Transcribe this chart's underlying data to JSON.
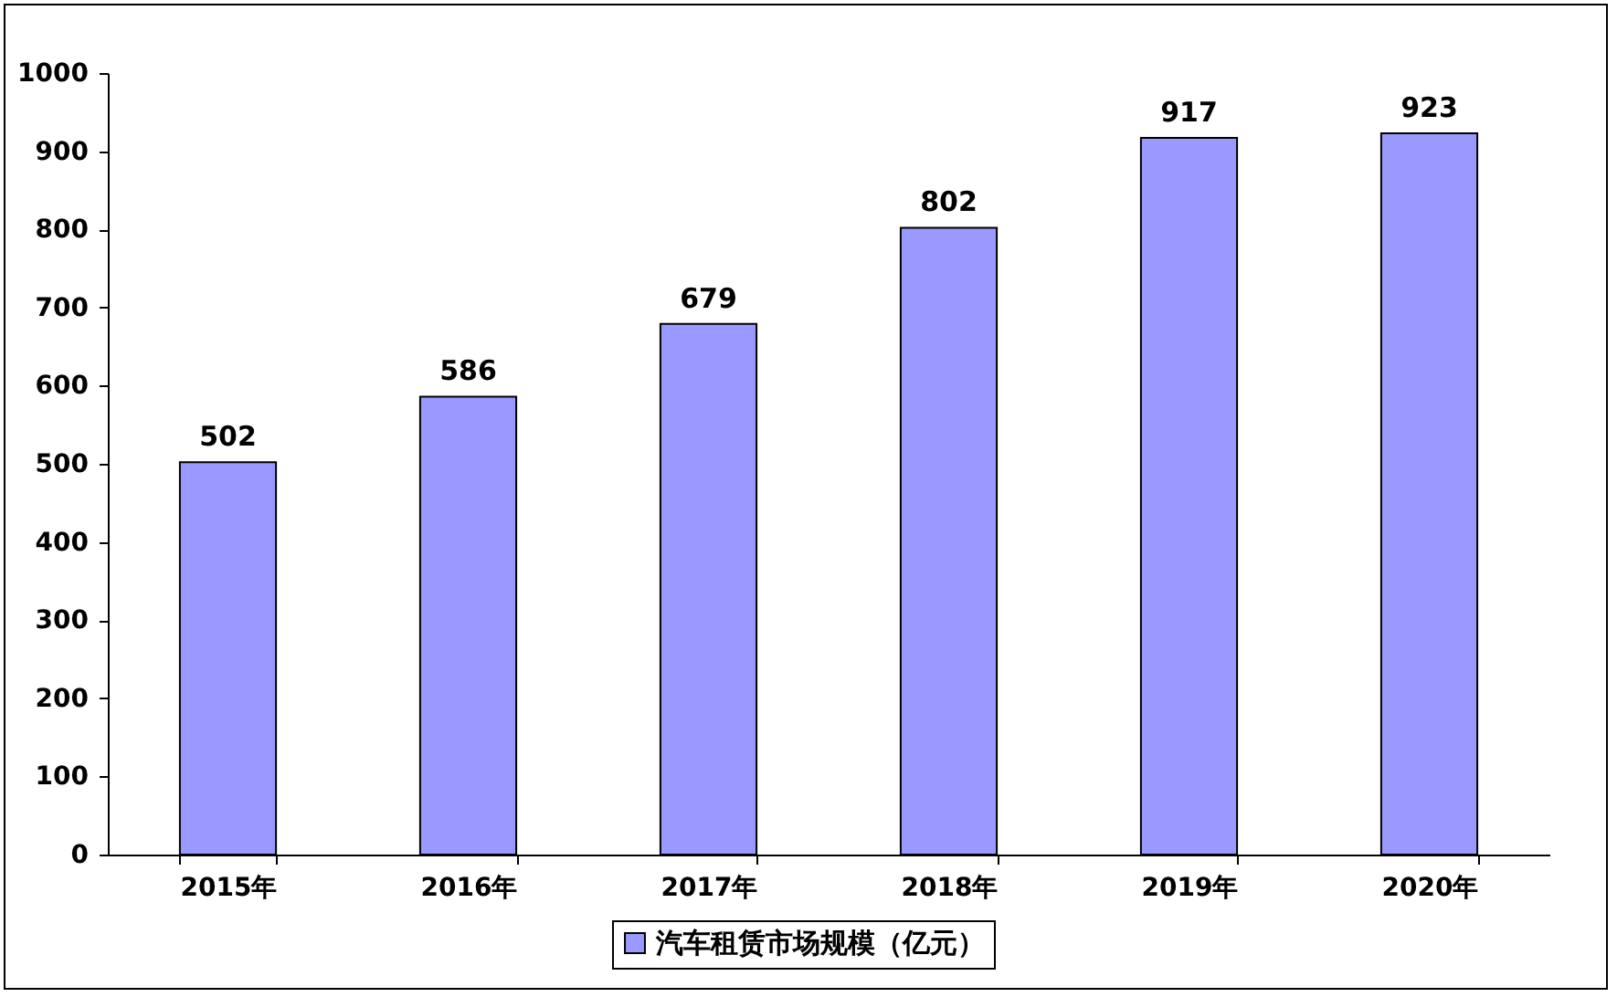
{
  "chart_data": {
    "type": "bar",
    "categories": [
      "2015年",
      "2016年",
      "2017年",
      "2018年",
      "2019年",
      "2020年"
    ],
    "series": [
      {
        "name": "汽车租赁市场规模（亿元）",
        "color": "#9999ff",
        "values": [
          502,
          586,
          679,
          802,
          917,
          923
        ]
      }
    ],
    "ylim": [
      0,
      1000
    ],
    "yticks": [
      0,
      100,
      200,
      300,
      400,
      500,
      600,
      700,
      800,
      900,
      1000
    ],
    "grid": false,
    "legend": "bottom",
    "data_labels": true
  }
}
